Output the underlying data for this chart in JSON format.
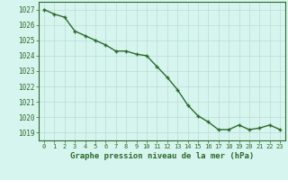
{
  "x": [
    0,
    1,
    2,
    3,
    4,
    5,
    6,
    7,
    8,
    9,
    10,
    11,
    12,
    13,
    14,
    15,
    16,
    17,
    18,
    19,
    20,
    21,
    22,
    23
  ],
  "y": [
    1027.0,
    1026.7,
    1026.5,
    1025.6,
    1025.3,
    1025.0,
    1024.7,
    1024.3,
    1024.3,
    1024.1,
    1024.0,
    1023.3,
    1022.6,
    1021.8,
    1020.8,
    1020.1,
    1019.7,
    1019.2,
    1019.2,
    1019.5,
    1019.2,
    1019.3,
    1019.5,
    1019.2
  ],
  "line_color": "#2d6a2d",
  "marker": "+",
  "bg_color": "#d6f5ee",
  "grid_color": "#b8ddd4",
  "xlabel": "Graphe pression niveau de la mer (hPa)",
  "xlabel_color": "#2d6a2d",
  "tick_color": "#2d6a2d",
  "ylim": [
    1018.5,
    1027.5
  ],
  "xlim": [
    -0.5,
    23.5
  ],
  "yticks": [
    1019,
    1020,
    1021,
    1022,
    1023,
    1024,
    1025,
    1026,
    1027
  ],
  "xticks": [
    0,
    1,
    2,
    3,
    4,
    5,
    6,
    7,
    8,
    9,
    10,
    11,
    12,
    13,
    14,
    15,
    16,
    17,
    18,
    19,
    20,
    21,
    22,
    23
  ],
  "linewidth": 1.0,
  "markersize": 3.5
}
